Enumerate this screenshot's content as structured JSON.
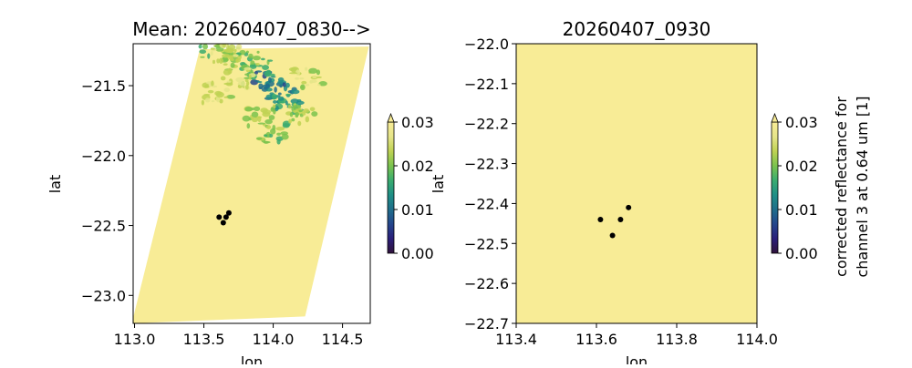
{
  "chart_data": [
    {
      "type": "heatmap",
      "title": "Mean: 20260407_0830-->",
      "xlabel": "lon",
      "ylabel": "lat",
      "xlim": [
        112.99,
        114.7
      ],
      "ylim": [
        -23.2,
        -21.2
      ],
      "xticks": [
        113.0,
        113.5,
        114.0,
        114.5
      ],
      "xtick_labels": [
        "113.0",
        "113.5",
        "114.0",
        "114.5"
      ],
      "yticks": [
        -21.5,
        -22.0,
        -22.5,
        -23.0
      ],
      "ytick_labels": [
        "−21.5",
        "−22.0",
        "−22.5",
        "−23.0"
      ],
      "swath_polygon": [
        [
          113.47,
          -21.24
        ],
        [
          114.69,
          -21.22
        ],
        [
          114.23,
          -23.15
        ],
        [
          112.98,
          -23.2
        ]
      ],
      "background_value": 0.03,
      "cloud_regions": [
        {
          "lon": 114.05,
          "lat": -21.55,
          "value": 0.012
        },
        {
          "lon": 113.97,
          "lat": -21.47,
          "value": 0.01
        },
        {
          "lon": 114.1,
          "lat": -21.63,
          "value": 0.016
        },
        {
          "lon": 113.88,
          "lat": -21.38,
          "value": 0.018
        },
        {
          "lon": 113.78,
          "lat": -21.33,
          "value": 0.02
        },
        {
          "lon": 113.9,
          "lat": -21.72,
          "value": 0.022
        },
        {
          "lon": 114.0,
          "lat": -21.84,
          "value": 0.02
        },
        {
          "lon": 113.57,
          "lat": -21.26,
          "value": 0.02
        },
        {
          "lon": 113.65,
          "lat": -21.28,
          "value": 0.024
        },
        {
          "lon": 113.75,
          "lat": -21.45,
          "value": 0.024
        },
        {
          "lon": 114.25,
          "lat": -21.45,
          "value": 0.024
        },
        {
          "lon": 114.2,
          "lat": -21.7,
          "value": 0.022
        },
        {
          "lon": 113.6,
          "lat": -21.55,
          "value": 0.024
        }
      ],
      "points": [
        {
          "lon": 113.61,
          "lat": -22.44
        },
        {
          "lon": 113.64,
          "lat": -22.48
        },
        {
          "lon": 113.66,
          "lat": -22.44
        },
        {
          "lon": 113.68,
          "lat": -22.41
        }
      ],
      "colorbar": {
        "ticks": [
          0.0,
          0.01,
          0.02,
          0.03
        ],
        "tick_labels": [
          "0.00",
          "0.01",
          "0.02",
          "0.03"
        ],
        "extend": "max",
        "label": ""
      }
    },
    {
      "type": "heatmap",
      "title": "20260407_0930",
      "xlabel": "lon",
      "ylabel": "lat",
      "xlim": [
        113.4,
        114.0
      ],
      "ylim": [
        -22.7,
        -22.0
      ],
      "xticks": [
        113.4,
        113.6,
        113.8,
        114.0
      ],
      "xtick_labels": [
        "113.4",
        "113.6",
        "113.8",
        "114.0"
      ],
      "yticks": [
        -22.0,
        -22.1,
        -22.2,
        -22.3,
        -22.4,
        -22.5,
        -22.6,
        -22.7
      ],
      "ytick_labels": [
        "−22.0",
        "−22.1",
        "−22.2",
        "−22.3",
        "−22.4",
        "−22.5",
        "−22.6",
        "−22.7"
      ],
      "background_value": 0.03,
      "points": [
        {
          "lon": 113.61,
          "lat": -22.44
        },
        {
          "lon": 113.64,
          "lat": -22.48
        },
        {
          "lon": 113.66,
          "lat": -22.44
        },
        {
          "lon": 113.68,
          "lat": -22.41
        }
      ],
      "colorbar": {
        "ticks": [
          0.0,
          0.01,
          0.02,
          0.03
        ],
        "tick_labels": [
          "0.00",
          "0.01",
          "0.02",
          "0.03"
        ],
        "extend": "max",
        "label_lines": [
          "corrected reflectance for",
          "channel 3 at 0.64 um [1]"
        ]
      }
    }
  ],
  "colormap": [
    "#30123b",
    "#2a1f7a",
    "#24468c",
    "#1f6e8b",
    "#1f8f86",
    "#3aac6f",
    "#7bc34e",
    "#bfd254",
    "#e6e58a",
    "#f8ec96"
  ]
}
